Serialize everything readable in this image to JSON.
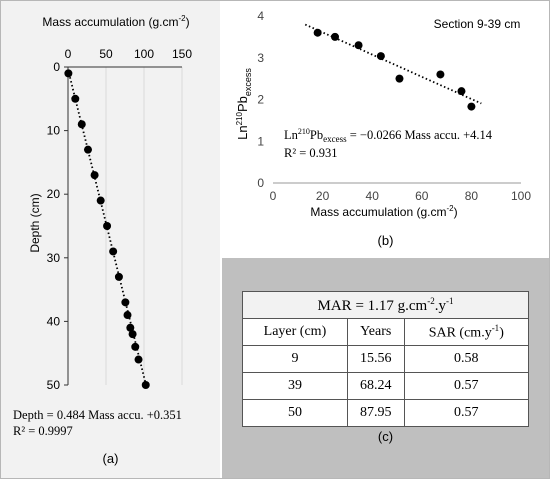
{
  "chart_data": [
    {
      "panel": "a",
      "type": "scatter",
      "xlabel": "Mass accumulation (g.cm⁻²)",
      "ylabel": "Depth (cm)",
      "xlim": [
        0,
        150
      ],
      "ylim": [
        0,
        50
      ],
      "y_inverted": true,
      "x_axis_position": "top",
      "x_ticks": [
        "0",
        "50",
        "100",
        "150"
      ],
      "y_ticks": [
        "0",
        "10",
        "20",
        "30",
        "40",
        "50"
      ],
      "points": [
        [
          0.5,
          1
        ],
        [
          9.6,
          5
        ],
        [
          18.1,
          9
        ],
        [
          26.3,
          13
        ],
        [
          35,
          17
        ],
        [
          43,
          21
        ],
        [
          51.4,
          25
        ],
        [
          59.4,
          29
        ],
        [
          67,
          33
        ],
        [
          75.5,
          37
        ],
        [
          78.3,
          39
        ],
        [
          82,
          41
        ],
        [
          85,
          42
        ],
        [
          88.5,
          44
        ],
        [
          92.8,
          46
        ],
        [
          102.3,
          50
        ]
      ],
      "trendline": {
        "slope": 0.484,
        "intercept": 0.351,
        "style": "dotted"
      },
      "equation": "Depth = 0.484 Mass accu. +0.351",
      "r2": "R² = 0.9997",
      "panel_label": "(a)"
    },
    {
      "panel": "b",
      "type": "scatter",
      "title": "Section 9-39 cm",
      "xlabel": "Mass accumulation (g.cm⁻²)",
      "ylabel": "Ln²¹⁰Pbₑₓₒₑₛₛ",
      "xlim": [
        0,
        100
      ],
      "ylim": [
        0,
        4
      ],
      "x_ticks": [
        "0",
        "20",
        "40",
        "60",
        "80",
        "100"
      ],
      "y_ticks": [
        "0",
        "1",
        "2",
        "3",
        "4"
      ],
      "points": [
        [
          18,
          3.6
        ],
        [
          25,
          3.5
        ],
        [
          34.5,
          3.3
        ],
        [
          43.5,
          3.04
        ],
        [
          51,
          2.5
        ],
        [
          67.5,
          2.6
        ],
        [
          76,
          2.2
        ],
        [
          80,
          1.83
        ]
      ],
      "trendline": {
        "slope": -0.0266,
        "intercept": 4.14,
        "x_range": [
          13,
          84
        ],
        "style": "dotted"
      },
      "equation": "Ln²¹⁰Pbₑₓₒₑₛₛ = −0.0266 Mass accu. +4.14",
      "r2": "R² = 0.931",
      "panel_label": "(b)"
    },
    {
      "panel": "c",
      "type": "table",
      "caption": "MAR = 1.17 g.cm⁻².y⁻¹",
      "columns": [
        "Layer (cm)",
        "Years",
        "SAR (cm.y⁻¹)"
      ],
      "rows": [
        [
          "9",
          "15.56",
          "0.58"
        ],
        [
          "39",
          "68.24",
          "0.57"
        ],
        [
          "50",
          "87.95",
          "0.57"
        ]
      ],
      "panel_label": "(c)"
    }
  ],
  "colors": {
    "panel_a_bg": "#f2f2f2",
    "panel_c_bg": "#bfbfbf",
    "marker": "#000000",
    "gridline": "#d9d9d9"
  }
}
